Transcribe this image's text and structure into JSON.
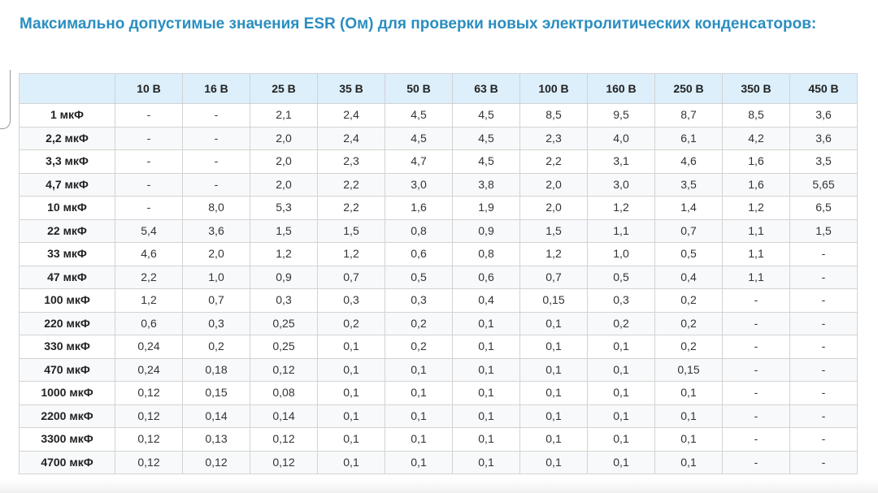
{
  "title": "Максимально допустимые значения ESR (Ом) для проверки новых электролитических конденсаторов:",
  "table": {
    "corner": "",
    "columns": [
      "10 В",
      "16 В",
      "25 В",
      "35 В",
      "50 В",
      "63 В",
      "100 В",
      "160 В",
      "250 В",
      "350 В",
      "450 В"
    ],
    "rows": [
      {
        "label": "1 мкФ",
        "values": [
          "-",
          "-",
          "2,1",
          "2,4",
          "4,5",
          "4,5",
          "8,5",
          "9,5",
          "8,7",
          "8,5",
          "3,6"
        ]
      },
      {
        "label": "2,2 мкФ",
        "values": [
          "-",
          "-",
          "2,0",
          "2,4",
          "4,5",
          "4,5",
          "2,3",
          "4,0",
          "6,1",
          "4,2",
          "3,6"
        ]
      },
      {
        "label": "3,3 мкФ",
        "values": [
          "-",
          "-",
          "2,0",
          "2,3",
          "4,7",
          "4,5",
          "2,2",
          "3,1",
          "4,6",
          "1,6",
          "3,5"
        ]
      },
      {
        "label": "4,7 мкФ",
        "values": [
          "-",
          "-",
          "2,0",
          "2,2",
          "3,0",
          "3,8",
          "2,0",
          "3,0",
          "3,5",
          "1,6",
          "5,65"
        ]
      },
      {
        "label": "10 мкФ",
        "values": [
          "-",
          "8,0",
          "5,3",
          "2,2",
          "1,6",
          "1,9",
          "2,0",
          "1,2",
          "1,4",
          "1,2",
          "6,5"
        ]
      },
      {
        "label": "22 мкФ",
        "values": [
          "5,4",
          "3,6",
          "1,5",
          "1,5",
          "0,8",
          "0,9",
          "1,5",
          "1,1",
          "0,7",
          "1,1",
          "1,5"
        ]
      },
      {
        "label": "33 мкФ",
        "values": [
          "4,6",
          "2,0",
          "1,2",
          "1,2",
          "0,6",
          "0,8",
          "1,2",
          "1,0",
          "0,5",
          "1,1",
          "-"
        ]
      },
      {
        "label": "47 мкФ",
        "values": [
          "2,2",
          "1,0",
          "0,9",
          "0,7",
          "0,5",
          "0,6",
          "0,7",
          "0,5",
          "0,4",
          "1,1",
          "-"
        ]
      },
      {
        "label": "100 мкФ",
        "values": [
          "1,2",
          "0,7",
          "0,3",
          "0,3",
          "0,3",
          "0,4",
          "0,15",
          "0,3",
          "0,2",
          "-",
          "-"
        ]
      },
      {
        "label": "220 мкФ",
        "values": [
          "0,6",
          "0,3",
          "0,25",
          "0,2",
          "0,2",
          "0,1",
          "0,1",
          "0,2",
          "0,2",
          "-",
          "-"
        ]
      },
      {
        "label": "330 мкФ",
        "values": [
          "0,24",
          "0,2",
          "0,25",
          "0,1",
          "0,2",
          "0,1",
          "0,1",
          "0,1",
          "0,2",
          "-",
          "-"
        ]
      },
      {
        "label": "470 мкФ",
        "values": [
          "0,24",
          "0,18",
          "0,12",
          "0,1",
          "0,1",
          "0,1",
          "0,1",
          "0,1",
          "0,15",
          "-",
          "-"
        ]
      },
      {
        "label": "1000 мкФ",
        "values": [
          "0,12",
          "0,15",
          "0,08",
          "0,1",
          "0,1",
          "0,1",
          "0,1",
          "0,1",
          "0,1",
          "-",
          "-"
        ]
      },
      {
        "label": "2200 мкФ",
        "values": [
          "0,12",
          "0,14",
          "0,14",
          "0,1",
          "0,1",
          "0,1",
          "0,1",
          "0,1",
          "0,1",
          "-",
          "-"
        ]
      },
      {
        "label": "3300 мкФ",
        "values": [
          "0,12",
          "0,13",
          "0,12",
          "0,1",
          "0,1",
          "0,1",
          "0,1",
          "0,1",
          "0,1",
          "-",
          "-"
        ]
      },
      {
        "label": "4700 мкФ",
        "values": [
          "0,12",
          "0,12",
          "0,12",
          "0,1",
          "0,1",
          "0,1",
          "0,1",
          "0,1",
          "0,1",
          "-",
          "-"
        ]
      }
    ]
  },
  "colors": {
    "title": "#2a8ec0",
    "header_bg": "#dceffb",
    "border": "#d3d3d3"
  }
}
